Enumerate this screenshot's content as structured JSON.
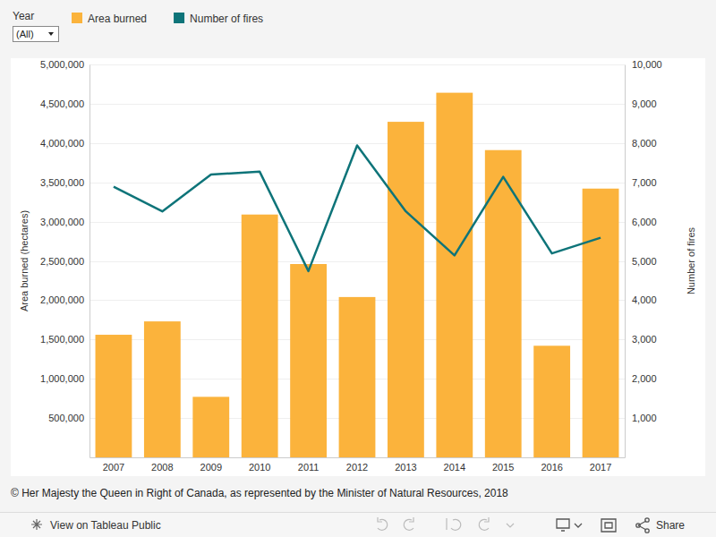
{
  "chart_data": {
    "type": "bar",
    "categories": [
      "2007",
      "2008",
      "2009",
      "2010",
      "2011",
      "2012",
      "2013",
      "2014",
      "2015",
      "2016",
      "2017"
    ],
    "series": [
      {
        "name": "Area burned",
        "type": "bar",
        "color": "#fbb33c",
        "values": [
          1560000,
          1730000,
          770000,
          3090000,
          2460000,
          2040000,
          4270000,
          4640000,
          3910000,
          1420000,
          3420000
        ]
      },
      {
        "name": "Number of fires",
        "type": "line",
        "axis": "y2",
        "color": "#0e7479",
        "values": [
          6890,
          6260,
          7200,
          7270,
          4740,
          7940,
          6260,
          5140,
          7140,
          5190,
          5590
        ]
      }
    ],
    "y_label": "Area burned (hectares)",
    "y2_label": "Number of fires",
    "ylim": [
      0,
      5000000
    ],
    "yticks": [
      {
        "value": 500000,
        "label": "500,000"
      },
      {
        "value": 1000000,
        "label": "1,000,000"
      },
      {
        "value": 1500000,
        "label": "1,500,000"
      },
      {
        "value": 2000000,
        "label": "2,000,000"
      },
      {
        "value": 2500000,
        "label": "2,500,000"
      },
      {
        "value": 3000000,
        "label": "3,000,000"
      },
      {
        "value": 3500000,
        "label": "3,500,000"
      },
      {
        "value": 4000000,
        "label": "4,000,000"
      },
      {
        "value": 4500000,
        "label": "4,500,000"
      },
      {
        "value": 5000000,
        "label": "5,000,000"
      }
    ],
    "y2lim": [
      0,
      10000
    ],
    "y2ticks": [
      {
        "value": 1000,
        "label": "1,000"
      },
      {
        "value": 2000,
        "label": "2,000"
      },
      {
        "value": 3000,
        "label": "3,000"
      },
      {
        "value": 4000,
        "label": "4,000"
      },
      {
        "value": 5000,
        "label": "5,000"
      },
      {
        "value": 6000,
        "label": "6,000"
      },
      {
        "value": 7000,
        "label": "7,000"
      },
      {
        "value": 8000,
        "label": "8,000"
      },
      {
        "value": 9000,
        "label": "9,000"
      },
      {
        "value": 10000,
        "label": "10,000"
      }
    ],
    "grid": true,
    "legend": "top"
  },
  "page": {
    "filter_label": "Year",
    "filter_value": "(All)",
    "copyright": "© Her Majesty the Queen in Right of Canada, as represented by the Minister of Natural Resources, 2018",
    "toolbar_view": "View on Tableau Public",
    "toolbar_share": "Share"
  }
}
